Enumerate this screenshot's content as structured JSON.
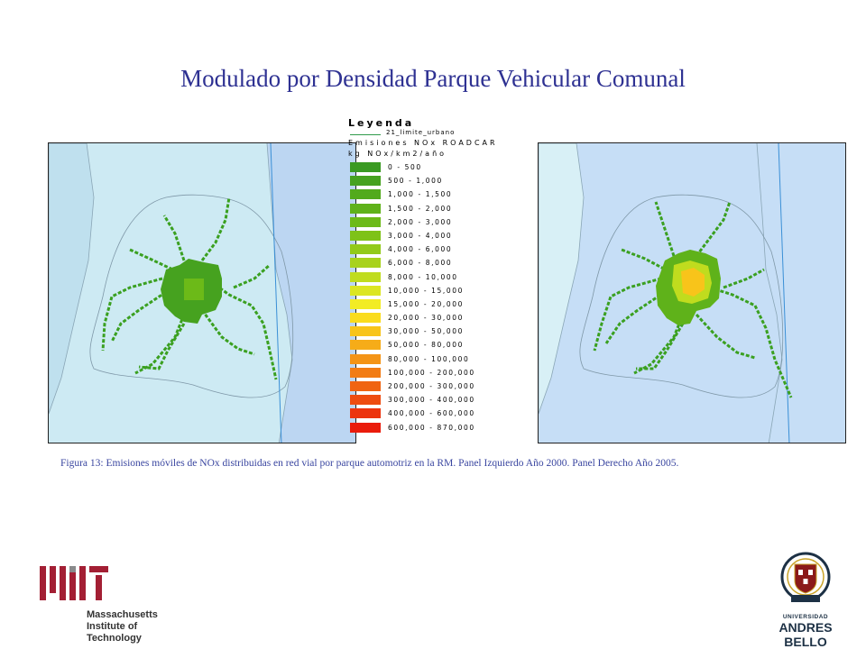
{
  "title": "Modulado por Densidad Parque Vehicular Comunal",
  "legend": {
    "title": "Leyenda",
    "line_label": "21_limite_urbano",
    "subtitle_1": "Emisiones NOx ROADCAR",
    "subtitle_2": "kg NOx/km2/año",
    "line_color": "#2f9a4a",
    "items": [
      {
        "label": "0 - 500",
        "color": "#3a9a22"
      },
      {
        "label": "500 - 1,000",
        "color": "#46a21f"
      },
      {
        "label": "1,000 - 1,500",
        "color": "#52aa1c"
      },
      {
        "label": "1,500 - 2,000",
        "color": "#5fb21a"
      },
      {
        "label": "2,000 - 3,000",
        "color": "#6cba18"
      },
      {
        "label": "3,000 - 4,000",
        "color": "#7ec218"
      },
      {
        "label": "4,000 - 6,000",
        "color": "#92ca1a"
      },
      {
        "label": "6,000 - 8,000",
        "color": "#a8d21c"
      },
      {
        "label": "8,000 - 10,000",
        "color": "#c0dc1e"
      },
      {
        "label": "10,000 - 15,000",
        "color": "#dce622"
      },
      {
        "label": "15,000 - 20,000",
        "color": "#f2ec24"
      },
      {
        "label": "20,000 - 30,000",
        "color": "#fadc1e"
      },
      {
        "label": "30,000 - 50,000",
        "color": "#f8c41a"
      },
      {
        "label": "50,000 - 80,000",
        "color": "#f6ac18"
      },
      {
        "label": "80,000 - 100,000",
        "color": "#f49416"
      },
      {
        "label": "100,000 - 200,000",
        "color": "#f27c14"
      },
      {
        "label": "200,000 - 300,000",
        "color": "#f06412"
      },
      {
        "label": "300,000 - 400,000",
        "color": "#ee4c10"
      },
      {
        "label": "400,000 - 600,000",
        "color": "#ec340e"
      },
      {
        "label": "600,000 - 870,000",
        "color": "#ea1c0c"
      }
    ]
  },
  "caption": "Figura 13: Emisiones móviles de NOx distribuidas en red vial por parque automotriz en la RM. Panel Izquierdo Año 2000. Panel Derecho Año 2005.",
  "logos": {
    "mit": {
      "line1": "Massachusetts",
      "line2": "Institute of",
      "line3": "Technology",
      "color": "#a31f34"
    },
    "unab": {
      "small": "UNIVERSIDAD",
      "big": "ANDRES BELLO",
      "color": "#1d3145"
    }
  }
}
